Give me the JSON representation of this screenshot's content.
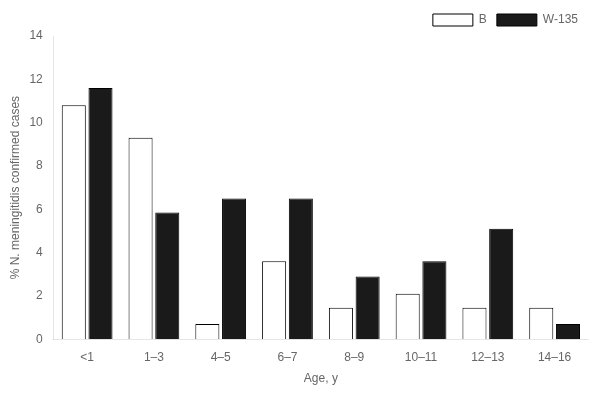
{
  "chart_data": {
    "type": "bar",
    "categories": [
      "<1",
      "1–3",
      "4–5",
      "6–7",
      "8–9",
      "10–11",
      "12–13",
      "14–16"
    ],
    "series": [
      {
        "name": "B",
        "color": "#ffffff",
        "values": [
          10.8,
          9.3,
          0.7,
          3.6,
          1.45,
          2.1,
          1.45,
          1.45
        ]
      },
      {
        "name": "W-135",
        "color": "#1a1a1a",
        "values": [
          11.6,
          5.85,
          6.5,
          6.5,
          2.9,
          3.6,
          5.1,
          0.7
        ]
      }
    ],
    "xlabel": "Age, y",
    "ylabel": "% N. meningitidis confirmed cases",
    "ylim": [
      0,
      14
    ],
    "yticks": [
      0,
      2,
      4,
      6,
      8,
      10,
      12,
      14
    ],
    "legend": "upper right",
    "grid": false
  }
}
